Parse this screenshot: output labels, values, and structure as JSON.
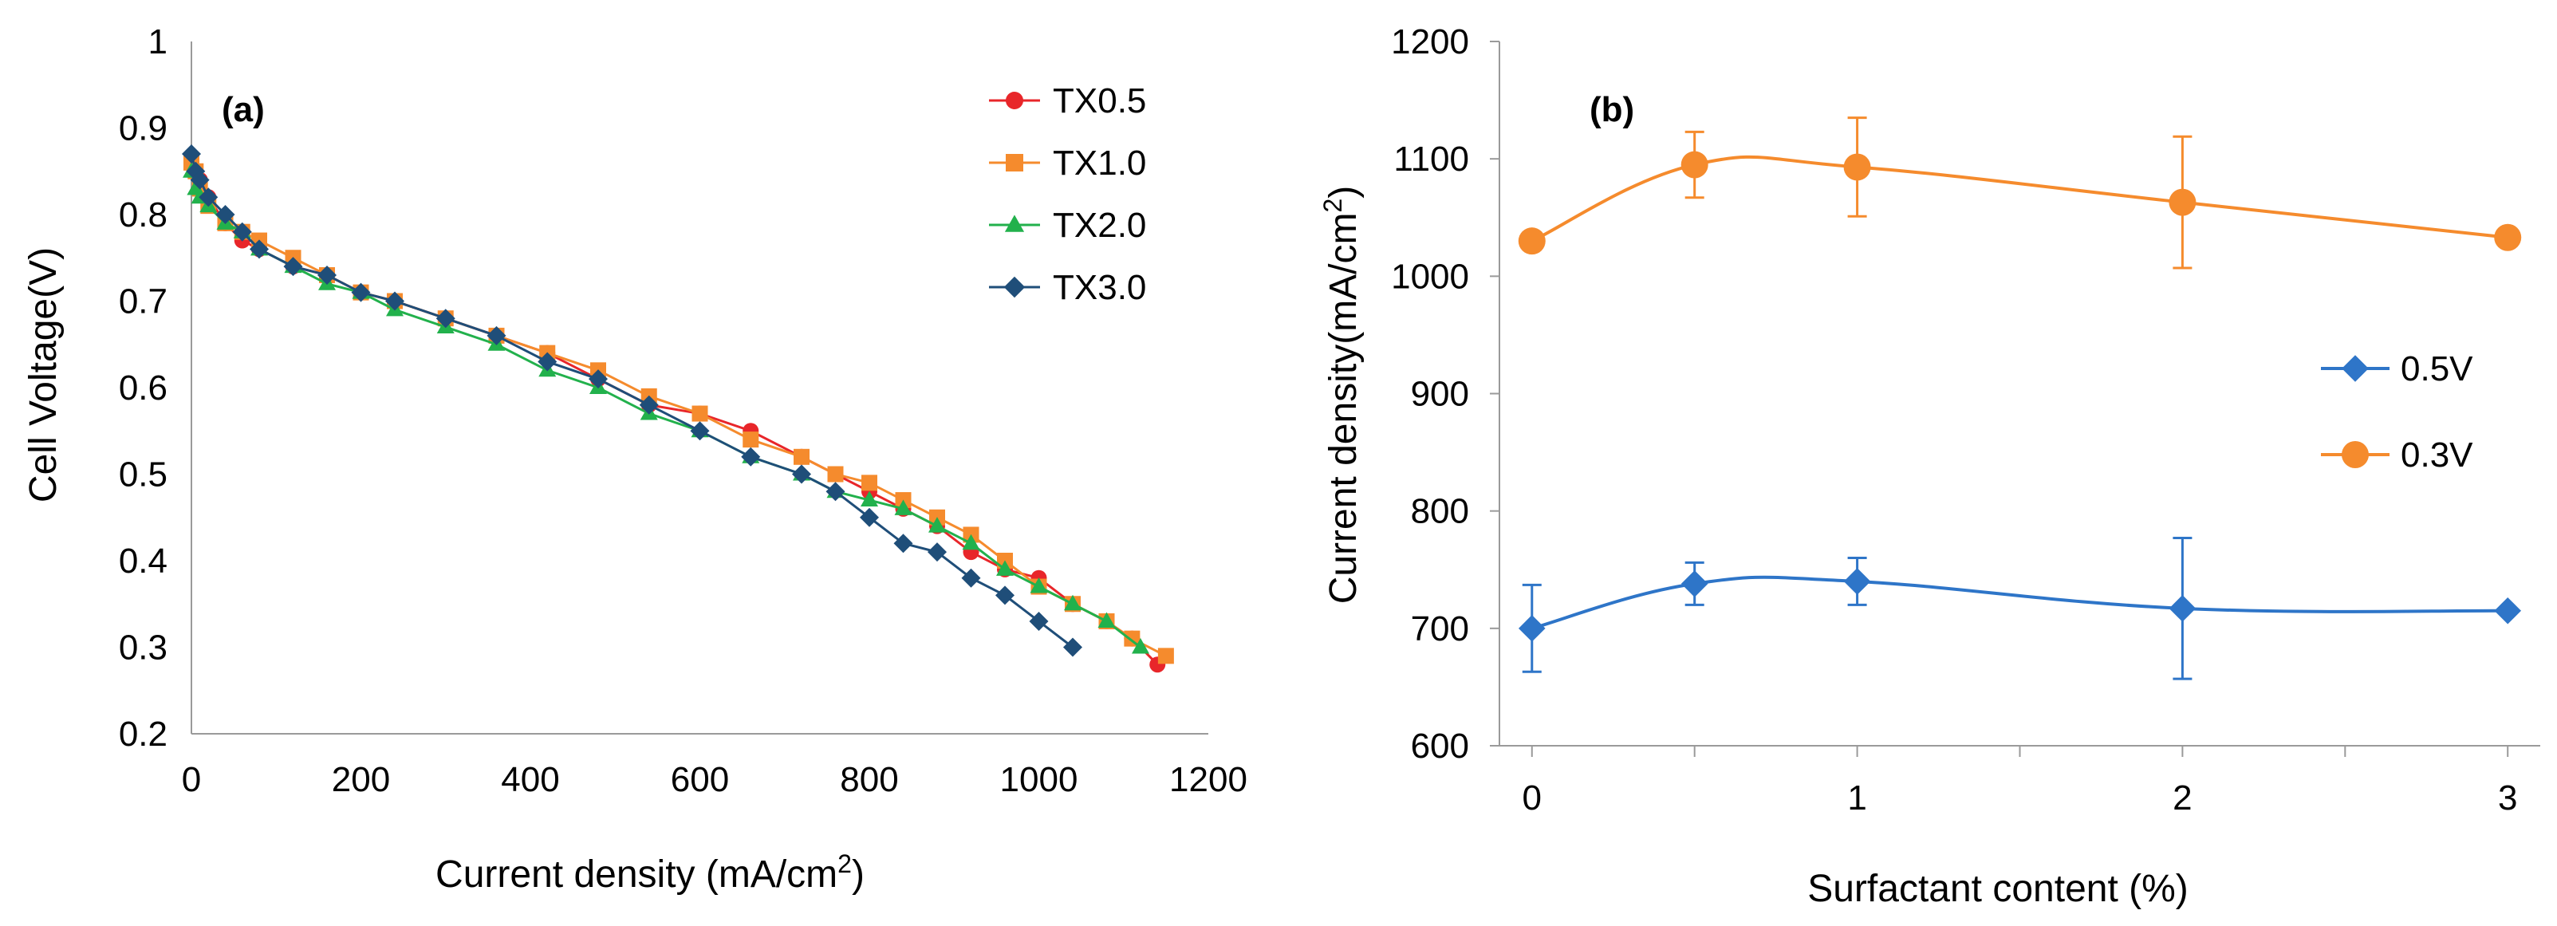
{
  "chart_data": [
    {
      "type": "line",
      "panel_label": "(a)",
      "xlabel_main": "Current density (mA/cm",
      "xlabel_sup": "2",
      "xlabel_close": ")",
      "ylabel": "Cell Voltage(V)",
      "xlim": [
        0,
        1200
      ],
      "ylim": [
        0.2,
        1.0
      ],
      "x_ticks": [
        "0",
        "200",
        "400",
        "600",
        "800",
        "1000",
        "1200"
      ],
      "y_ticks": [
        "0.2",
        "0.3",
        "0.4",
        "0.5",
        "0.6",
        "0.7",
        "0.8",
        "0.9",
        "1"
      ],
      "legend_position": "top-right",
      "series": [
        {
          "name": "TX0.5",
          "color": "#e8262a",
          "marker": "circle",
          "x": [
            0,
            5,
            10,
            20,
            40,
            60,
            80,
            120,
            160,
            200,
            240,
            300,
            360,
            420,
            480,
            540,
            600,
            660,
            720,
            760,
            800,
            840,
            880,
            920,
            960,
            1000,
            1040,
            1080,
            1110,
            1140
          ],
          "y": [
            0.86,
            0.85,
            0.84,
            0.82,
            0.79,
            0.77,
            0.76,
            0.74,
            0.73,
            0.71,
            0.7,
            0.68,
            0.66,
            0.64,
            0.61,
            0.58,
            0.57,
            0.55,
            0.52,
            0.5,
            0.48,
            0.46,
            0.44,
            0.41,
            0.39,
            0.38,
            0.35,
            0.33,
            0.31,
            0.28
          ]
        },
        {
          "name": "TX1.0",
          "color": "#f58b2d",
          "marker": "square",
          "x": [
            0,
            5,
            10,
            20,
            40,
            60,
            80,
            120,
            160,
            200,
            240,
            300,
            360,
            420,
            480,
            540,
            600,
            660,
            720,
            760,
            800,
            840,
            880,
            920,
            960,
            1000,
            1040,
            1080,
            1110,
            1150
          ],
          "y": [
            0.86,
            0.85,
            0.83,
            0.81,
            0.79,
            0.78,
            0.77,
            0.75,
            0.73,
            0.71,
            0.7,
            0.68,
            0.66,
            0.64,
            0.62,
            0.59,
            0.57,
            0.54,
            0.52,
            0.5,
            0.49,
            0.47,
            0.45,
            0.43,
            0.4,
            0.37,
            0.35,
            0.33,
            0.31,
            0.29
          ]
        },
        {
          "name": "TX2.0",
          "color": "#22b14c",
          "marker": "triangle",
          "x": [
            0,
            5,
            10,
            20,
            40,
            60,
            80,
            120,
            160,
            200,
            240,
            300,
            360,
            420,
            480,
            540,
            600,
            660,
            720,
            760,
            800,
            840,
            880,
            920,
            960,
            1000,
            1040,
            1080,
            1120
          ],
          "y": [
            0.85,
            0.83,
            0.82,
            0.81,
            0.79,
            0.78,
            0.76,
            0.74,
            0.72,
            0.71,
            0.69,
            0.67,
            0.65,
            0.62,
            0.6,
            0.57,
            0.55,
            0.52,
            0.5,
            0.48,
            0.47,
            0.46,
            0.44,
            0.42,
            0.39,
            0.37,
            0.35,
            0.33,
            0.3
          ]
        },
        {
          "name": "TX3.0",
          "color": "#1f4e79",
          "marker": "diamond",
          "x": [
            0,
            5,
            10,
            20,
            40,
            60,
            80,
            120,
            160,
            200,
            240,
            300,
            360,
            420,
            480,
            540,
            600,
            660,
            720,
            760,
            800,
            840,
            880,
            920,
            960,
            1000,
            1040
          ],
          "y": [
            0.87,
            0.85,
            0.84,
            0.82,
            0.8,
            0.78,
            0.76,
            0.74,
            0.73,
            0.71,
            0.7,
            0.68,
            0.66,
            0.63,
            0.61,
            0.58,
            0.55,
            0.52,
            0.5,
            0.48,
            0.45,
            0.42,
            0.41,
            0.38,
            0.36,
            0.33,
            0.3
          ]
        }
      ]
    },
    {
      "type": "line",
      "panel_label": "(b)",
      "xlabel": "Surfactant content (%)",
      "ylabel_main": "Current density(mA/cm",
      "ylabel_sup": "2",
      "ylabel_close": ")",
      "xlim": [
        -0.1,
        3.1
      ],
      "ylim": [
        600,
        1200
      ],
      "x_ticks": [
        "0",
        "1",
        "2",
        "3"
      ],
      "y_ticks": [
        "600",
        "700",
        "800",
        "900",
        "1000",
        "1100",
        "1200"
      ],
      "legend_position": "center-right",
      "series": [
        {
          "name": "0.5V",
          "color": "#2e75c8",
          "marker": "diamond",
          "x": [
            0,
            0.5,
            1,
            2,
            3
          ],
          "y": [
            700,
            738,
            740,
            717,
            715
          ],
          "error": [
            37,
            18,
            20,
            60,
            0
          ]
        },
        {
          "name": "0.3V",
          "color": "#f58b2d",
          "marker": "circle",
          "x": [
            0,
            0.5,
            1,
            2,
            3
          ],
          "y": [
            1030,
            1095,
            1093,
            1063,
            1033
          ],
          "error": [
            0,
            28,
            42,
            56,
            0
          ]
        }
      ]
    }
  ]
}
